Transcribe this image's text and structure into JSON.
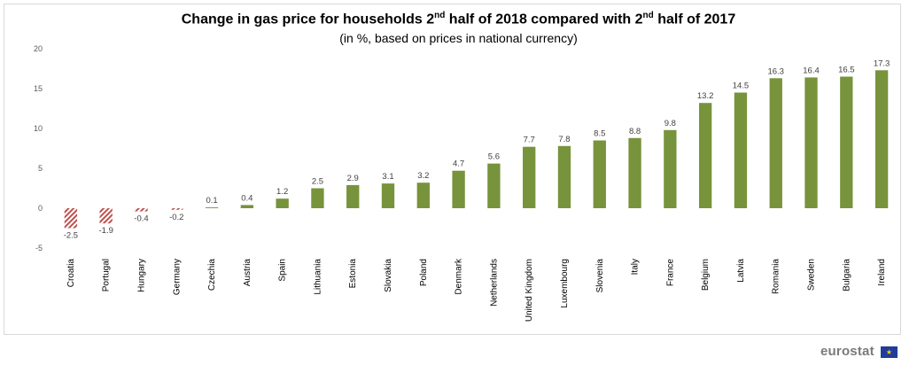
{
  "header": {
    "title_parts": [
      "Change in gas price for households 2",
      "nd",
      " half of 2018 compared with 2",
      "nd",
      " half of 2017"
    ],
    "subtitle": "(in %, based on prices in national currency)"
  },
  "chart_data": {
    "type": "bar",
    "title": "Change in gas price for households 2nd half of 2018 compared with 2nd half of 2017",
    "subtitle": "(in %, based on prices in national currency)",
    "categories": [
      "Croatia",
      "Portugal",
      "Hungary",
      "Germany",
      "Czechia",
      "Austria",
      "Spain",
      "Lithuania",
      "Estonia",
      "Slovakia",
      "Poland",
      "Denmark",
      "Netherlands",
      "United Kingdom",
      "Luxembourg",
      "Slovenia",
      "Italy",
      "France",
      "Belgium",
      "Latvia",
      "Romania",
      "Sweden",
      "Bulgaria",
      "Ireland"
    ],
    "values": [
      -2.5,
      -1.9,
      -0.4,
      -0.2,
      0.1,
      0.4,
      1.2,
      2.5,
      2.9,
      3.1,
      3.2,
      4.7,
      5.6,
      7.7,
      7.8,
      8.5,
      8.8,
      9.8,
      13.2,
      14.5,
      16.3,
      16.4,
      16.5,
      17.3
    ],
    "value_labels": [
      "-2.5",
      "-1.9",
      "-0.4",
      "-0.2",
      "0.1",
      "0.4",
      "1.2",
      "2.5",
      "2.9",
      "3.1",
      "3.2",
      "4.7",
      "5.6",
      "7.7",
      "7.8",
      "8.5",
      "8.8",
      "9.8",
      "13.2",
      "14.5",
      "16.3",
      "16.4",
      "16.5",
      "17.3"
    ],
    "ylim": [
      -5,
      20
    ],
    "yticks": [
      "-5",
      "0",
      "5",
      "10",
      "15",
      "20"
    ],
    "ytick_values": [
      -5,
      0,
      5,
      10,
      15,
      20
    ],
    "grid": false,
    "colors": {
      "positive": "#77933c",
      "negative": "#c0504d"
    }
  },
  "branding": {
    "logo_text": "eurostat",
    "flag_icon": "eu-flag-icon",
    "flag_stars": "★"
  }
}
